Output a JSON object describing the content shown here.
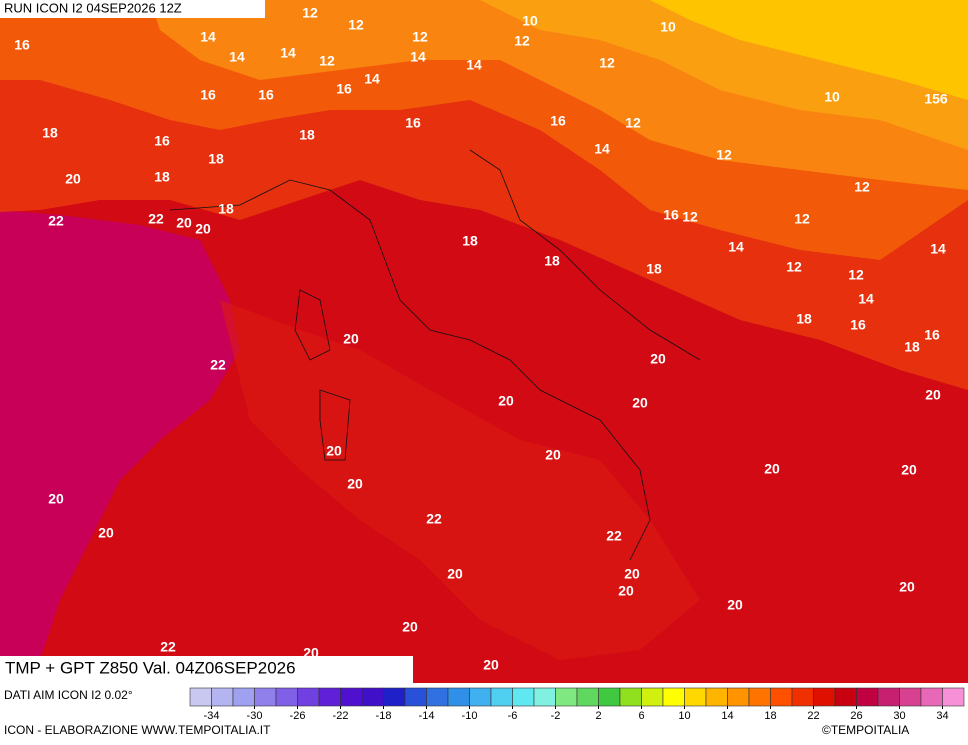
{
  "header": {
    "run": "RUN ICON I2 04SEP2026 12Z"
  },
  "title": "TMP + GPT Z850 Val. 04Z06SEP2026",
  "footer": {
    "data_source": "DATI AIM ICON I2 0.02°",
    "credit": "ICON - ELABORAZIONE WWW.TEMPOITALIA.IT",
    "copyright": "©TEMPOITALIA"
  },
  "colorbar": {
    "lim": [
      -36,
      36
    ],
    "ticks": [
      -34,
      -30,
      -26,
      -22,
      -18,
      -14,
      -10,
      -6,
      -2,
      2,
      6,
      10,
      14,
      18,
      22,
      26,
      30,
      34
    ],
    "colors": [
      "#c8c8f0",
      "#b4b4f0",
      "#a0a0f0",
      "#9080ec",
      "#8060e6",
      "#7040e0",
      "#6020d8",
      "#5010d0",
      "#4010c8",
      "#2020c8",
      "#2850d8",
      "#3070e0",
      "#3090e8",
      "#40b0f0",
      "#50d0f0",
      "#60e8f0",
      "#80f0e0",
      "#80e880",
      "#60d860",
      "#40c840",
      "#90e020",
      "#d0f010",
      "#ffff00",
      "#ffd800",
      "#ffb400",
      "#ff9400",
      "#ff7400",
      "#ff5000",
      "#f03000",
      "#e01000",
      "#c80010",
      "#c00040",
      "#c82070",
      "#d84090",
      "#e868b8",
      "#f890d8"
    ]
  },
  "map": {
    "contour_labels": [
      12,
      12,
      10,
      10,
      16,
      14,
      14,
      14,
      12,
      12,
      12,
      14,
      14,
      14,
      16,
      12,
      10,
      156,
      16,
      16,
      18,
      16,
      18,
      16,
      16,
      12,
      14,
      12,
      20,
      18,
      18,
      12,
      18,
      22,
      22,
      20,
      20,
      16,
      12,
      12,
      18,
      14,
      14,
      18,
      18,
      12,
      12,
      14,
      18,
      16,
      16,
      18,
      20,
      22,
      20,
      20,
      20,
      20,
      20,
      20,
      20,
      20,
      20,
      20,
      22,
      20,
      22,
      20,
      20,
      20,
      20,
      20,
      20,
      22,
      20,
      20
    ]
  }
}
